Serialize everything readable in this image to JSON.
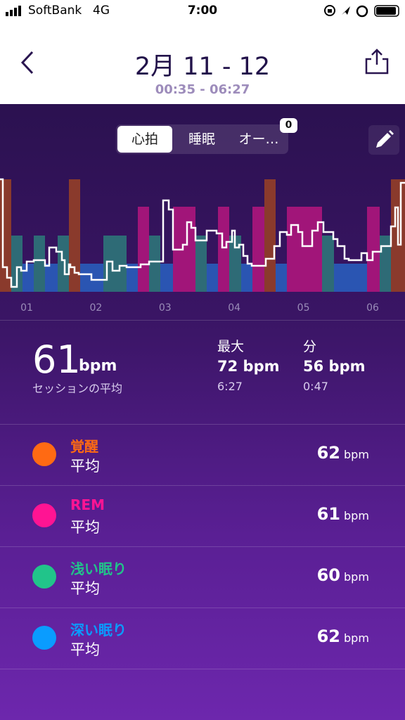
{
  "status_bar": {
    "carrier": "SoftBank",
    "network": "4G",
    "time": "7:00"
  },
  "header": {
    "title": "2月 11 - 12",
    "subtitle": "00:35 - 06:27"
  },
  "tabs": [
    "心拍",
    "睡眠",
    "オー…"
  ],
  "tab_badge": "0",
  "x_axis_labels": [
    "01",
    "02",
    "03",
    "04",
    "05",
    "06"
  ],
  "summary": {
    "average": {
      "value": "61",
      "unit": "bpm",
      "label": "セッションの平均"
    },
    "max": {
      "label": "最大",
      "value": "72 bpm",
      "time": "6:27"
    },
    "min": {
      "label": "分",
      "value": "56 bpm",
      "time": "0:47"
    }
  },
  "stages": [
    {
      "name": "覚醒",
      "color": "#ff6a13",
      "label": "平均",
      "value": "62",
      "unit": "bpm"
    },
    {
      "name": "REM",
      "color": "#ff1493",
      "label": "平均",
      "value": "61",
      "unit": "bpm"
    },
    {
      "name": "浅い眠り",
      "color": "#21c48a",
      "label": "平均",
      "value": "60",
      "unit": "bpm"
    },
    {
      "name": "深い眠り",
      "color": "#0a9cff",
      "label": "平均",
      "value": "62",
      "unit": "bpm"
    }
  ]
}
